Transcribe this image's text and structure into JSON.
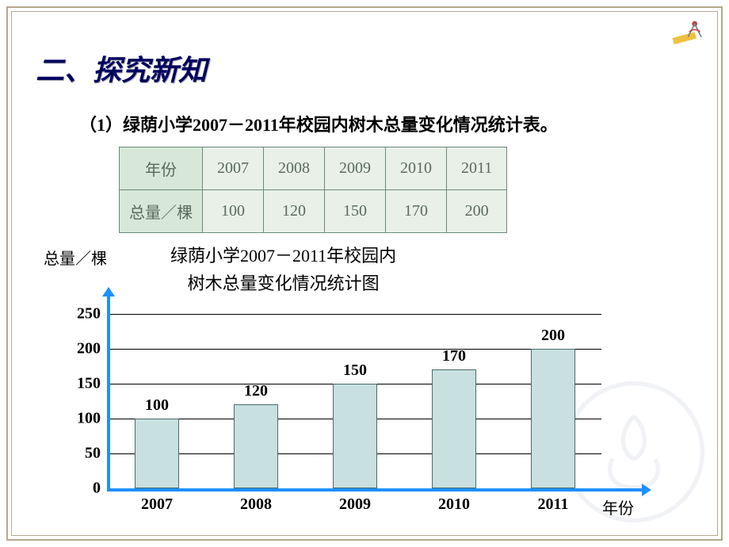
{
  "heading": "二、探究新知",
  "subtitle": "（1）绿荫小学2007－2011年校园内树木总量变化情况统计表。",
  "table": {
    "row1_label": "年份",
    "row2_label": "总量／棵",
    "years": [
      "2007",
      "2008",
      "2009",
      "2010",
      "2011"
    ],
    "values": [
      "100",
      "120",
      "150",
      "170",
      "200"
    ]
  },
  "chart": {
    "ylabel": "总量／棵",
    "title_line1": "绿荫小学2007－2011年校园内",
    "title_line2": "树木总量变化情况统计图",
    "xlabel": "年份",
    "ylim": [
      0,
      250
    ],
    "ytick_step": 50,
    "yticks": [
      "0",
      "50",
      "100",
      "150",
      "200",
      "250"
    ],
    "categories": [
      "2007",
      "2008",
      "2009",
      "2010",
      "2011"
    ],
    "values": [
      100,
      120,
      150,
      170,
      200
    ],
    "bar_color": "#c8e0e0",
    "bar_border": "#4a6a6a",
    "axis_color": "#1e90ff",
    "grid_color": "#000000"
  }
}
